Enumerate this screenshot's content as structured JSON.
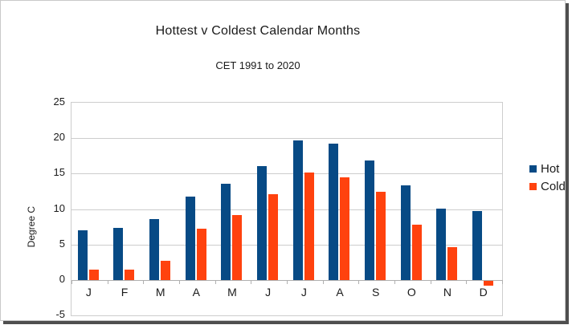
{
  "frame": {
    "background": "#ffffff",
    "border_color": "#c9c9c9",
    "shadow_color": "#4f4f4f"
  },
  "colors": {
    "hot_bar": "#074a85",
    "cold_bar": "#ff420e",
    "gridline": "#cdcdcd",
    "zero_axis": "#b0b0b0",
    "text": "#1a1a1a"
  },
  "chart_data": {
    "type": "bar",
    "title": "Hottest v Coldest Calendar Months",
    "subtitle": "CET 1991 to 2020",
    "ylabel": "Degree C",
    "xlabel": "",
    "categories": [
      "J",
      "F",
      "M",
      "A",
      "M",
      "J",
      "J",
      "A",
      "S",
      "O",
      "N",
      "D"
    ],
    "series": [
      {
        "name": "Hot",
        "color": "#074a85",
        "values": [
          7.0,
          7.3,
          8.6,
          11.8,
          13.6,
          16.1,
          19.7,
          19.2,
          16.8,
          13.3,
          10.1,
          9.7
        ]
      },
      {
        "name": "Cold",
        "color": "#ff420e",
        "values": [
          1.4,
          1.5,
          2.7,
          7.2,
          9.1,
          12.1,
          15.2,
          14.5,
          12.4,
          7.8,
          4.6,
          -0.7
        ]
      }
    ],
    "ylim": [
      -5,
      25
    ],
    "yticks": [
      25,
      20,
      15,
      10,
      5,
      0,
      -5
    ],
    "grid": true,
    "legend_position": "right",
    "legend_labels": [
      "Hot",
      "Cold"
    ]
  }
}
